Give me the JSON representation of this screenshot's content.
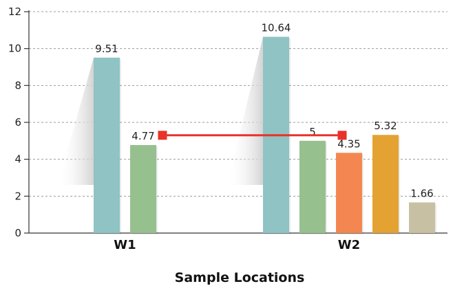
{
  "chart_data": {
    "type": "bar",
    "title": "",
    "xlabel": "Sample Locations",
    "ylabel": "",
    "ylim": [
      0,
      12
    ],
    "yticks": [
      0,
      2,
      4,
      6,
      8,
      10,
      12
    ],
    "grid": true,
    "groups": [
      {
        "name": "W1",
        "bars": [
          {
            "value": 9.51,
            "label": "9.51",
            "color": "#8fc3c4"
          },
          {
            "value": 4.77,
            "label": "4.77",
            "color": "#97c08f"
          }
        ]
      },
      {
        "name": "W2",
        "bars": [
          {
            "value": 10.64,
            "label": "10.64",
            "color": "#8fc3c4"
          },
          {
            "value": 5,
            "label": "5",
            "color": "#97c08f"
          },
          {
            "value": 4.35,
            "label": "4.35",
            "color": "#f48751"
          },
          {
            "value": 5.32,
            "label": "5.32",
            "color": "#e4a232"
          },
          {
            "value": 1.66,
            "label": "1.66",
            "color": "#c7c0a2"
          }
        ]
      }
    ],
    "connector": {
      "value": 5.3,
      "from_group": 0,
      "to_group": 1,
      "color": "#e8322a"
    }
  }
}
